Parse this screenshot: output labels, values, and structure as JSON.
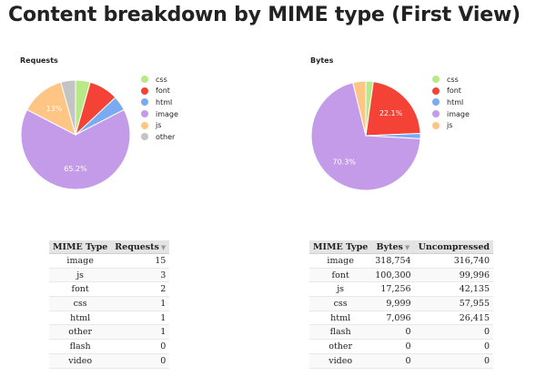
{
  "page": {
    "title": "Content breakdown by MIME type (First View)"
  },
  "requests": {
    "title": "Requests",
    "chart_data": {
      "type": "pie",
      "title": "Requests",
      "legend": "right",
      "slices": [
        {
          "label": "css",
          "value": 1,
          "color": "#b8e986"
        },
        {
          "label": "font",
          "value": 2,
          "color": "#f44336"
        },
        {
          "label": "html",
          "value": 1,
          "color": "#7aaaf2"
        },
        {
          "label": "image",
          "value": 15,
          "color": "#c39be8"
        },
        {
          "label": "js",
          "value": 3,
          "color": "#fec584"
        },
        {
          "label": "other",
          "value": 1,
          "color": "#c4c4c4"
        }
      ],
      "data_labels": [
        {
          "label": "image",
          "text": "65.2%"
        },
        {
          "label": "js",
          "text": "13%"
        }
      ]
    }
  },
  "bytes": {
    "title": "Bytes",
    "chart_data": {
      "type": "pie",
      "title": "Bytes",
      "legend": "right",
      "slices": [
        {
          "label": "css",
          "value": 9999,
          "color": "#b8e986"
        },
        {
          "label": "font",
          "value": 100300,
          "color": "#f44336"
        },
        {
          "label": "html",
          "value": 7096,
          "color": "#7aaaf2"
        },
        {
          "label": "image",
          "value": 318754,
          "color": "#c39be8"
        },
        {
          "label": "js",
          "value": 17256,
          "color": "#fec584"
        }
      ],
      "data_labels": [
        {
          "label": "font",
          "text": "22.1%"
        },
        {
          "label": "image",
          "text": "70.3%"
        }
      ]
    }
  },
  "requests_table": {
    "headers": [
      "MIME Type",
      "Requests"
    ],
    "sort_icon": "sort-desc-icon",
    "rows": [
      {
        "type": "image",
        "requests": "15"
      },
      {
        "type": "js",
        "requests": "3"
      },
      {
        "type": "font",
        "requests": "2"
      },
      {
        "type": "css",
        "requests": "1"
      },
      {
        "type": "html",
        "requests": "1"
      },
      {
        "type": "other",
        "requests": "1"
      },
      {
        "type": "flash",
        "requests": "0"
      },
      {
        "type": "video",
        "requests": "0"
      }
    ]
  },
  "bytes_table": {
    "headers": [
      "MIME Type",
      "Bytes",
      "Uncompressed"
    ],
    "sort_icon": "sort-desc-icon",
    "rows": [
      {
        "type": "image",
        "bytes": "318,754",
        "uncompressed": "316,740"
      },
      {
        "type": "font",
        "bytes": "100,300",
        "uncompressed": "99,996"
      },
      {
        "type": "js",
        "bytes": "17,256",
        "uncompressed": "42,135"
      },
      {
        "type": "css",
        "bytes": "9,999",
        "uncompressed": "57,955"
      },
      {
        "type": "html",
        "bytes": "7,096",
        "uncompressed": "26,415"
      },
      {
        "type": "flash",
        "bytes": "0",
        "uncompressed": "0"
      },
      {
        "type": "other",
        "bytes": "0",
        "uncompressed": "0"
      },
      {
        "type": "video",
        "bytes": "0",
        "uncompressed": "0"
      }
    ]
  }
}
